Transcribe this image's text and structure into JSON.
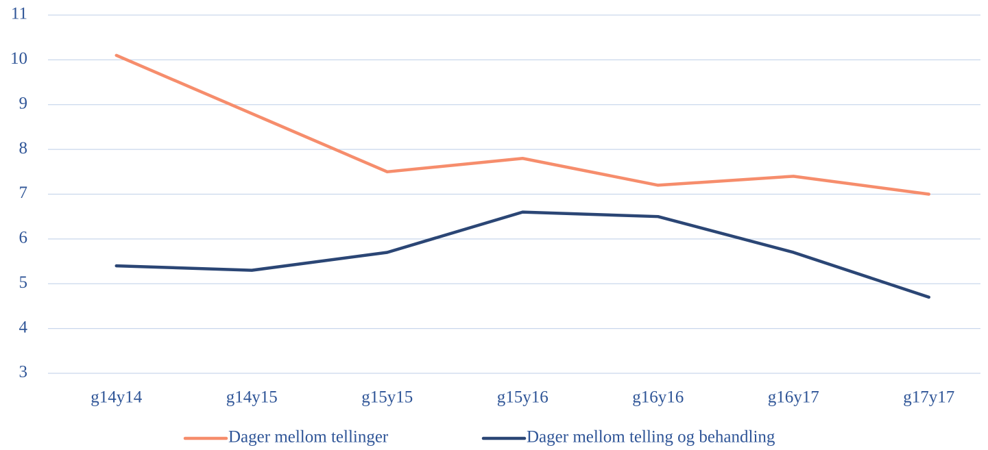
{
  "chart_data": {
    "type": "line",
    "categories": [
      "g14y14",
      "g14y15",
      "g15y15",
      "g15y16",
      "g16y16",
      "g16y17",
      "g17y17"
    ],
    "series": [
      {
        "name": "Dager mellom tellinger",
        "color": "#f68d6c",
        "values": [
          10.1,
          8.8,
          7.5,
          7.8,
          7.2,
          7.4,
          7.0
        ]
      },
      {
        "name": "Dager mellom telling og behandling",
        "color": "#2b4675",
        "values": [
          5.4,
          5.3,
          5.7,
          6.6,
          6.5,
          5.7,
          4.7
        ]
      }
    ],
    "ylim": [
      3,
      11
    ],
    "yticks": [
      3,
      4,
      5,
      6,
      7,
      8,
      9,
      10,
      11
    ],
    "grid": true,
    "legend": "bottom"
  }
}
